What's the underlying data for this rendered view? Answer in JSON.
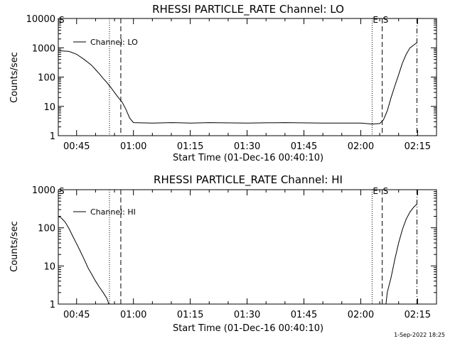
{
  "footer": {
    "date_stamp": "1-Sep-2022 18:25"
  },
  "colors": {
    "background": "#ffffff",
    "ink": "#000000"
  },
  "chart_data": [
    {
      "type": "line",
      "title": "RHESSI PARTICLE_RATE Channel: LO",
      "xlabel": "Start Time (01-Dec-16 00:40:10)",
      "ylabel": "Counts/sec",
      "yscale": "log",
      "xlim": [
        "00:40:10",
        "02:20:00"
      ],
      "ylim": [
        1,
        10000
      ],
      "x_ticks": [
        "00:45",
        "01:00",
        "01:15",
        "01:30",
        "01:45",
        "02:00",
        "02:15"
      ],
      "y_ticks": [
        "1",
        "10",
        "100",
        "1000",
        "10000"
      ],
      "legend": {
        "label": "Channel: LO",
        "position": "top-left"
      },
      "markers": [
        {
          "label": "S",
          "time": "00:40:10",
          "style": "dashed"
        },
        {
          "label": "",
          "time": "00:53:40",
          "style": "dotted"
        },
        {
          "label": "",
          "time": "00:56:40",
          "style": "dashed"
        },
        {
          "label": "E",
          "time": "02:03:00",
          "style": "dotted"
        },
        {
          "label": "S",
          "time": "02:05:40",
          "style": "dashed"
        },
        {
          "label": "",
          "time": "02:14:50",
          "style": "dash-dot"
        }
      ],
      "series": [
        {
          "name": "Channel: LO",
          "x": [
            "00:40:10",
            "00:43:00",
            "00:45:00",
            "00:47:00",
            "00:49:00",
            "00:50:00",
            "00:51:00",
            "00:52:00",
            "00:53:00",
            "00:54:00",
            "00:55:00",
            "00:56:00",
            "00:57:00",
            "00:58:00",
            "00:59:00",
            "01:00:00",
            "01:05:00",
            "01:10:00",
            "01:15:00",
            "01:20:00",
            "01:30:00",
            "01:40:00",
            "01:50:00",
            "02:00:00",
            "02:03:00",
            "02:05:00",
            "02:06:00",
            "02:07:00",
            "02:08:00",
            "02:09:00",
            "02:10:00",
            "02:11:00",
            "02:12:00",
            "02:13:00",
            "02:14:50"
          ],
          "y": [
            800,
            750,
            600,
            400,
            250,
            180,
            130,
            90,
            65,
            45,
            30,
            20,
            14,
            8,
            4,
            2.8,
            2.7,
            2.8,
            2.7,
            2.8,
            2.7,
            2.8,
            2.7,
            2.7,
            2.5,
            2.6,
            3.5,
            7,
            20,
            50,
            120,
            300,
            600,
            1000,
            1500
          ]
        }
      ]
    },
    {
      "type": "line",
      "title": "RHESSI PARTICLE_RATE Channel: HI",
      "xlabel": "Start Time (01-Dec-16 00:40:10)",
      "ylabel": "Counts/sec",
      "yscale": "log",
      "xlim": [
        "00:40:10",
        "02:20:00"
      ],
      "ylim": [
        1,
        1000
      ],
      "x_ticks": [
        "00:45",
        "01:00",
        "01:15",
        "01:30",
        "01:45",
        "02:00",
        "02:15"
      ],
      "y_ticks": [
        "1",
        "10",
        "100",
        "1000"
      ],
      "legend": {
        "label": "Channel: HI",
        "position": "top-left"
      },
      "markers": [
        {
          "label": "S",
          "time": "00:40:10",
          "style": "dashed"
        },
        {
          "label": "",
          "time": "00:53:40",
          "style": "dotted"
        },
        {
          "label": "",
          "time": "00:56:40",
          "style": "dashed"
        },
        {
          "label": "E",
          "time": "02:03:00",
          "style": "dotted"
        },
        {
          "label": "S",
          "time": "02:05:40",
          "style": "dashed"
        },
        {
          "label": "",
          "time": "02:14:50",
          "style": "dash-dot"
        }
      ],
      "series": [
        {
          "name": "Channel: HI",
          "x": [
            "00:40:10",
            "00:41:00",
            "00:42:00",
            "00:43:00",
            "00:44:00",
            "00:45:00",
            "00:46:00",
            "00:47:00",
            "00:48:00",
            "00:49:00",
            "00:50:00",
            "00:51:00",
            "00:52:00",
            "00:53:00",
            "00:53:30",
            "02:06:40",
            "02:07:00",
            "02:08:00",
            "02:09:00",
            "02:10:00",
            "02:11:00",
            "02:12:00",
            "02:13:00",
            "02:14:00",
            "02:14:50"
          ],
          "y": [
            200,
            180,
            140,
            95,
            60,
            38,
            24,
            15,
            9,
            6,
            4,
            2.8,
            2,
            1.4,
            1,
            1,
            2,
            5,
            15,
            40,
            90,
            170,
            260,
            350,
            420
          ]
        }
      ]
    }
  ]
}
